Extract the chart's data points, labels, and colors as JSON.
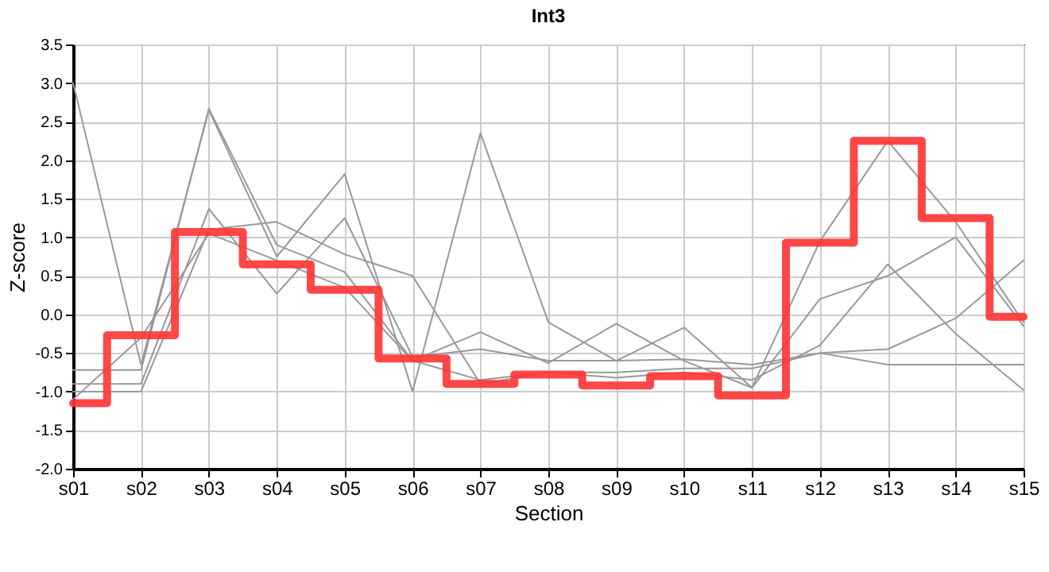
{
  "chart_data": {
    "type": "line",
    "title": "Int3",
    "xlabel": "Section",
    "ylabel": "Z-score",
    "categories": [
      "s01",
      "s02",
      "s03",
      "s04",
      "s05",
      "s06",
      "s07",
      "s08",
      "s09",
      "s10",
      "s11",
      "s12",
      "s13",
      "s14",
      "s15"
    ],
    "series": [
      {
        "color": "#999999",
        "values": [
          3.0,
          -0.65,
          2.65,
          0.75,
          1.82,
          -1.0,
          2.35,
          -0.1,
          -0.6,
          -0.17,
          -0.95,
          0.95,
          2.25,
          1.2,
          -0.1
        ]
      },
      {
        "color": "#999999",
        "values": [
          -0.72,
          -0.72,
          2.67,
          0.9,
          0.55,
          -0.6,
          -0.23,
          -0.63,
          -0.12,
          -0.6,
          -0.95,
          0.2,
          0.5,
          1.0,
          -0.15
        ]
      },
      {
        "color": "#999999",
        "values": [
          -0.9,
          -0.9,
          1.37,
          0.27,
          1.25,
          -0.55,
          -0.45,
          -0.6,
          -0.6,
          -0.58,
          -0.65,
          -0.5,
          -0.65,
          -0.65,
          -0.65
        ]
      },
      {
        "color": "#999999",
        "values": [
          -1.0,
          -1.0,
          1.1,
          1.2,
          0.78,
          0.5,
          -0.9,
          -0.75,
          -0.75,
          -0.7,
          -0.7,
          -0.5,
          -0.45,
          -0.05,
          0.7
        ]
      },
      {
        "color": "#999999",
        "values": [
          -1.1,
          -0.3,
          1.05,
          0.7,
          0.35,
          -0.6,
          -0.85,
          -0.75,
          -0.82,
          -0.75,
          -0.85,
          -0.4,
          0.65,
          -0.25,
          -0.98
        ]
      },
      {
        "type": "step",
        "color": "#ff3333",
        "values": [
          -1.15,
          -0.27,
          1.07,
          0.65,
          0.32,
          -0.57,
          -0.9,
          -0.78,
          -0.92,
          -0.8,
          -1.05,
          0.93,
          2.25,
          1.25,
          -0.03
        ]
      }
    ],
    "ylim": [
      -2.0,
      3.5
    ],
    "yticks": [
      {
        "value": -2,
        "label": "-2.0"
      },
      -1.5,
      {
        "value": -1,
        "label": "-1.0"
      },
      -0.5,
      {
        "value": 0,
        "label": "0.0"
      },
      0.5,
      {
        "value": 1,
        "label": "1.0"
      },
      1.5,
      {
        "value": 2,
        "label": "2.0"
      },
      2.5,
      {
        "value": 3,
        "label": "3.0"
      },
      3.5
    ],
    "grid": true,
    "marker": "none"
  }
}
